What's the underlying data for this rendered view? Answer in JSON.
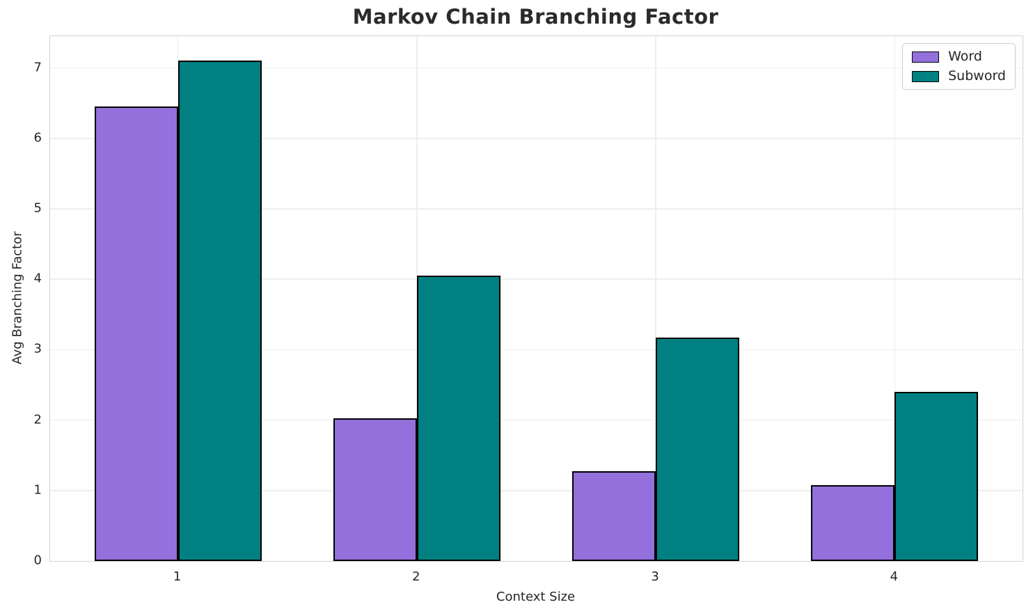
{
  "title": "Markov Chain Branching Factor",
  "chart_data": {
    "type": "bar",
    "title": "Markov Chain Branching Factor",
    "xlabel": "Context Size",
    "ylabel": "Avg Branching Factor",
    "categories": [
      "1",
      "2",
      "3",
      "4"
    ],
    "series": [
      {
        "name": "Word",
        "color": "#9370DB",
        "values": [
          6.45,
          2.03,
          1.27,
          1.08
        ]
      },
      {
        "name": "Subword",
        "color": "#008080",
        "values": [
          7.1,
          4.05,
          3.17,
          2.4
        ]
      }
    ],
    "ylim": [
      0,
      7.45
    ],
    "yticks": [
      0,
      1,
      2,
      3,
      4,
      5,
      6,
      7
    ],
    "bar_width": 0.35,
    "bar_edge_color": "#000000",
    "grid": true,
    "legend_position": "upper right",
    "gridline_color": "#eeeeee",
    "spine_color": "#d2d2d2"
  }
}
